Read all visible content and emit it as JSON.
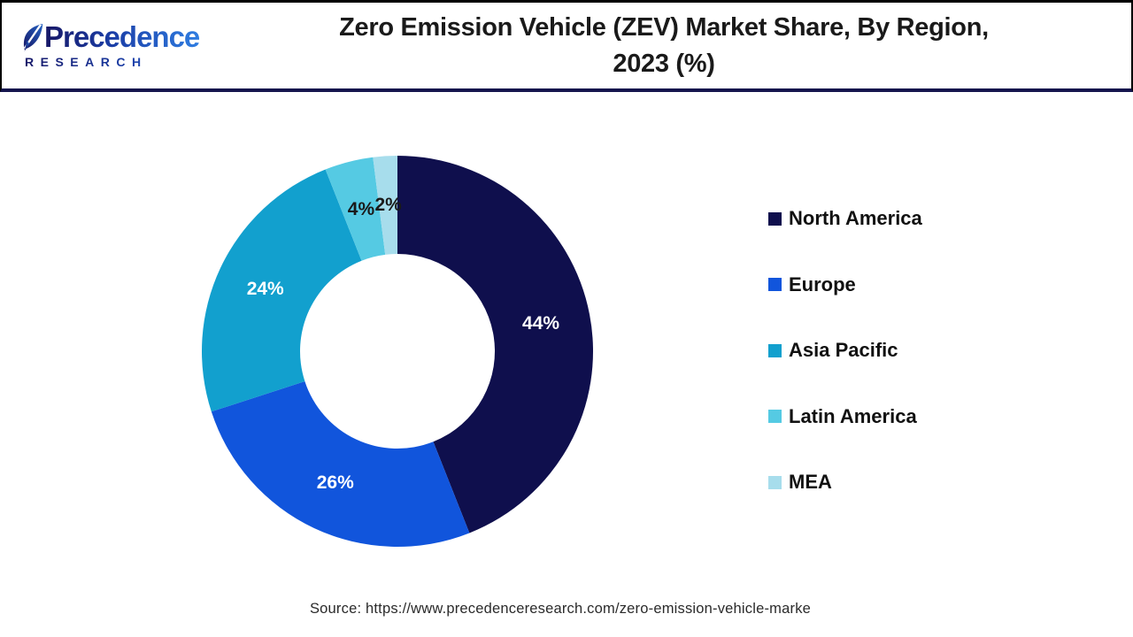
{
  "brand": {
    "name": "Precedence",
    "subtitle": "RESEARCH"
  },
  "title_line1": "Zero Emission Vehicle (ZEV) Market Share, By Region,",
  "title_line2": "2023 (%)",
  "source_text": "Source: https://www.precedenceresearch.com/zero-emission-vehicle-marke",
  "colors": {
    "separator_navy": "#14144d",
    "page_border": "#000000",
    "title_text": "#1a1a1a",
    "brand_gradient_start": "#171766",
    "brand_gradient_end": "#2f7de1"
  },
  "chart_data": {
    "type": "pie",
    "subtype": "donut",
    "title": "Zero Emission Vehicle (ZEV) Market Share, By Region, 2023 (%)",
    "unit": "%",
    "legend_position": "right",
    "start_angle_deg": 0,
    "direction": "clockwise",
    "donut_hole_ratio": 0.5,
    "outer_radius_px": 221,
    "inner_radius_px": 110,
    "label_radius_px": 165,
    "categories": [
      "North America",
      "Europe",
      "Asia Pacific",
      "Latin America",
      "MEA"
    ],
    "values": [
      44,
      26,
      24,
      4,
      2
    ],
    "segments": [
      {
        "label": "North America",
        "value": 44,
        "display": "44%",
        "color": "#0f0f4d",
        "label_color": "#ffffff"
      },
      {
        "label": "Europe",
        "value": 26,
        "display": "26%",
        "color": "#1155dc",
        "label_color": "#ffffff"
      },
      {
        "label": "Asia Pacific",
        "value": 24,
        "display": "24%",
        "color": "#12a0ce",
        "label_color": "#ffffff"
      },
      {
        "label": "Latin America",
        "value": 4,
        "display": "4%",
        "color": "#55cae3",
        "label_color": "#1a1a1a"
      },
      {
        "label": "MEA",
        "value": 2,
        "display": "2%",
        "color": "#a7ddec",
        "label_color": "#1a1a1a"
      }
    ]
  }
}
